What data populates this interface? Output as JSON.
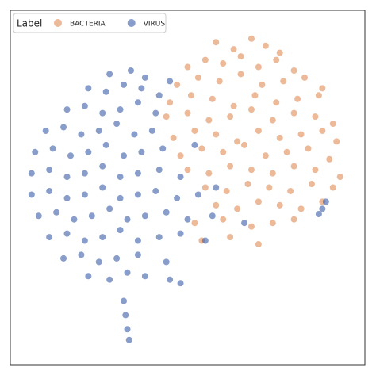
{
  "chart_data": {
    "type": "scatter",
    "legend_title": "Label",
    "legend": "upper left",
    "xlim": [
      0,
      100
    ],
    "ylim": [
      0,
      100
    ],
    "series": [
      {
        "name": "BACTERIA",
        "color": "#e08a55",
        "x": [
          58,
          63,
          68,
          72,
          76,
          50,
          55,
          60,
          65,
          70,
          75,
          80,
          47,
          53,
          59,
          65,
          71,
          77,
          83,
          88,
          45,
          51,
          57,
          63,
          69,
          75,
          81,
          87,
          44,
          50,
          56,
          62,
          68,
          74,
          80,
          86,
          91,
          46,
          52,
          58,
          64,
          70,
          76,
          82,
          88,
          92,
          48,
          54,
          60,
          66,
          72,
          78,
          84,
          90,
          50,
          56,
          62,
          68,
          74,
          80,
          86,
          93,
          55,
          61,
          67,
          73,
          79,
          85,
          91,
          58,
          64,
          70,
          76,
          82,
          88,
          52,
          60,
          68,
          74,
          80,
          54,
          62,
          70
        ],
        "y": [
          91,
          89,
          92,
          90,
          88,
          84,
          86,
          85,
          87,
          84,
          86,
          83,
          79,
          81,
          80,
          82,
          79,
          80,
          81,
          78,
          74,
          76,
          75,
          73,
          76,
          74,
          75,
          76,
          70,
          71,
          69,
          70,
          72,
          69,
          71,
          70,
          68,
          64,
          66,
          65,
          63,
          66,
          64,
          65,
          66,
          63,
          59,
          61,
          60,
          62,
          59,
          60,
          61,
          58,
          55,
          54,
          56,
          55,
          54,
          56,
          55,
          53,
          50,
          49,
          51,
          50,
          49,
          51,
          50,
          45,
          44,
          46,
          45,
          44,
          46,
          40,
          41,
          39,
          40,
          41,
          35,
          36,
          34
        ]
      },
      {
        "name": "VIRUS",
        "color": "#3a5ba8",
        "x": [
          28,
          34,
          38,
          22,
          27,
          32,
          37,
          42,
          16,
          21,
          26,
          31,
          36,
          41,
          10,
          15,
          20,
          25,
          30,
          35,
          40,
          7,
          12,
          17,
          22,
          27,
          32,
          37,
          43,
          6,
          11,
          16,
          21,
          26,
          31,
          36,
          42,
          48,
          6,
          11,
          16,
          21,
          26,
          31,
          36,
          41,
          47,
          53,
          8,
          13,
          18,
          23,
          28,
          33,
          38,
          44,
          50,
          57,
          11,
          16,
          21,
          26,
          31,
          36,
          42,
          48,
          55,
          15,
          20,
          25,
          30,
          36,
          44,
          22,
          28,
          33,
          38,
          45,
          48,
          32,
          32.5,
          33,
          33.5,
          88,
          89,
          87,
          52,
          58,
          66,
          45
        ],
        "y": [
          82,
          83,
          81,
          78,
          77,
          79,
          78,
          76,
          72,
          73,
          71,
          72,
          74,
          71,
          66,
          67,
          65,
          66,
          68,
          65,
          66,
          60,
          61,
          59,
          60,
          62,
          59,
          60,
          61,
          54,
          55,
          53,
          54,
          56,
          53,
          54,
          55,
          53,
          48,
          49,
          47,
          48,
          50,
          47,
          48,
          49,
          47,
          48,
          42,
          43,
          41,
          42,
          44,
          41,
          42,
          43,
          41,
          42,
          36,
          37,
          35,
          36,
          38,
          35,
          36,
          37,
          35,
          30,
          31,
          29,
          30,
          31,
          29,
          25,
          24,
          26,
          25,
          24,
          23,
          18,
          14,
          10,
          7,
          44,
          46,
          42.5,
          62,
          50,
          40,
          80
        ]
      }
    ]
  }
}
